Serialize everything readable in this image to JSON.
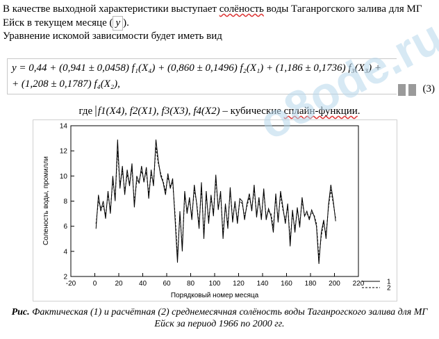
{
  "text": {
    "para1_a": "В качестве выходной характеристики выступает ",
    "para1_b": "солёность",
    "para1_c": " воды Таганрогского залива для МГ Ейск в текущем месяце (",
    "para1_y": "y",
    "para1_d": ").",
    "para2": "Уравнение искомой зависимости будет иметь вид",
    "formula_line1": "y = 0,44 + (0,941 ± 0,0458) f₁(X₄) + (0,860 ± 0,1496) f₂(X₁) + (1,186 ± 0,1736) f₃(X₃) +",
    "formula_line2": "+ (1,208 ± 0,1787) f₄(X₂),",
    "eq_number": "(3)",
    "where_a": "где ",
    "where_b": "f1(X4), f2(X1), f3(X3), f4(X2)",
    "where_c": " – кубические ",
    "where_d": "сплайн-функции",
    "where_e": ".",
    "caption_bold": "Рис.",
    "caption_rest": " Фактическая (1) и расчётная (2) среднемесячная солёность воды Таганрогского залива для МГ Ейск за период 1966 по 2000 гг.",
    "watermark": "o8ode.ru"
  },
  "chart_data": {
    "type": "line",
    "xlabel": "Порядковый номер месяца",
    "ylabel": "Соленость воды, промилли",
    "xlim": [
      -20,
      220
    ],
    "ylim": [
      2,
      14
    ],
    "xticks": [
      -20,
      0,
      20,
      40,
      60,
      80,
      100,
      120,
      140,
      160,
      180,
      200,
      220
    ],
    "yticks": [
      2,
      4,
      6,
      8,
      10,
      12,
      14
    ],
    "legend_position": "bottom-right",
    "series": [
      {
        "name": "1",
        "style": "solid",
        "x": [
          1,
          3,
          5,
          7,
          9,
          11,
          13,
          15,
          17,
          19,
          21,
          23,
          25,
          27,
          29,
          31,
          33,
          35,
          37,
          39,
          41,
          43,
          45,
          47,
          49,
          51,
          53,
          55,
          57,
          59,
          61,
          63,
          65,
          67,
          69,
          71,
          73,
          75,
          77,
          79,
          81,
          83,
          85,
          87,
          89,
          91,
          93,
          95,
          97,
          99,
          101,
          103,
          105,
          107,
          109,
          111,
          113,
          115,
          117,
          119,
          121,
          123,
          125,
          127,
          129,
          131,
          133,
          135,
          137,
          139,
          141,
          143,
          145,
          147,
          149,
          151,
          153,
          155,
          157,
          159,
          161,
          163,
          165,
          167,
          169,
          171,
          173,
          175,
          177,
          179,
          181,
          183,
          185,
          187,
          189,
          191,
          193,
          195,
          197,
          199,
          201
        ],
        "y": [
          5.8,
          8.5,
          7.2,
          8.0,
          6.6,
          8.8,
          7.0,
          10.0,
          8.0,
          12.9,
          9.0,
          10.8,
          8.5,
          10.5,
          9.2,
          11.0,
          7.5,
          10.0,
          9.4,
          10.8,
          9.5,
          10.7,
          8.2,
          10.5,
          9.2,
          12.9,
          11.2,
          10.0,
          9.5,
          8.5,
          10.2,
          9.0,
          9.8,
          6.5,
          3.1,
          7.2,
          4.0,
          8.8,
          7.0,
          8.3,
          6.5,
          9.3,
          7.8,
          5.8,
          9.5,
          5.0,
          8.8,
          6.2,
          8.5,
          6.8,
          10.1,
          7.3,
          8.8,
          5.0,
          7.8,
          5.8,
          9.1,
          6.3,
          8.0,
          6.2,
          8.2,
          8.0,
          6.5,
          7.8,
          8.6,
          7.2,
          9.3,
          6.7,
          8.3,
          6.5,
          9.0,
          6.5,
          7.4,
          6.8,
          5.5,
          8.6,
          6.3,
          8.8,
          7.5,
          6.2,
          7.8,
          4.4,
          7.3,
          5.5,
          7.5,
          5.9,
          8.3,
          6.8,
          7.2,
          6.5,
          7.3,
          6.8,
          6.0,
          3.0,
          5.5,
          6.5,
          5.0,
          7.7,
          9.3,
          8.0,
          6.4
        ]
      },
      {
        "name": "2",
        "style": "dashed",
        "x": [
          1,
          3,
          5,
          7,
          9,
          11,
          13,
          15,
          17,
          19,
          21,
          23,
          25,
          27,
          29,
          31,
          33,
          35,
          37,
          39,
          41,
          43,
          45,
          47,
          49,
          51,
          53,
          55,
          57,
          59,
          61,
          63,
          65,
          67,
          69,
          71,
          73,
          75,
          77,
          79,
          81,
          83,
          85,
          87,
          89,
          91,
          93,
          95,
          97,
          99,
          101,
          103,
          105,
          107,
          109,
          111,
          113,
          115,
          117,
          119,
          121,
          123,
          125,
          127,
          129,
          131,
          133,
          135,
          137,
          139,
          141,
          143,
          145,
          147,
          149,
          151,
          153,
          155,
          157,
          159,
          161,
          163,
          165,
          167,
          169,
          171,
          173,
          175,
          177,
          179,
          181,
          183,
          185,
          187,
          189,
          191,
          193,
          195,
          197,
          199,
          201
        ],
        "y": [
          6.2,
          8.0,
          7.5,
          7.6,
          6.9,
          8.5,
          7.3,
          9.6,
          8.3,
          12.0,
          9.3,
          10.4,
          8.8,
          10.1,
          9.4,
          10.6,
          7.9,
          9.6,
          9.6,
          10.4,
          9.7,
          10.3,
          8.6,
          10.1,
          9.5,
          12.3,
          11.0,
          10.2,
          9.6,
          8.8,
          9.9,
          9.2,
          9.5,
          6.9,
          3.6,
          6.9,
          4.4,
          8.4,
          7.3,
          8.0,
          6.8,
          8.9,
          7.9,
          6.1,
          9.1,
          5.4,
          8.5,
          6.5,
          8.2,
          7.1,
          9.7,
          7.5,
          8.5,
          5.4,
          7.6,
          6.1,
          8.8,
          6.6,
          7.8,
          6.5,
          8.0,
          7.8,
          6.8,
          7.6,
          8.3,
          7.4,
          8.9,
          7.0,
          8.0,
          6.8,
          8.7,
          6.8,
          7.2,
          7.0,
          5.9,
          8.3,
          6.6,
          8.5,
          7.3,
          6.5,
          7.6,
          4.9,
          7.0,
          5.8,
          7.3,
          6.2,
          8.0,
          6.9,
          7.0,
          6.7,
          7.1,
          6.9,
          6.2,
          3.5,
          5.2,
          6.3,
          5.3,
          7.5,
          8.9,
          7.8,
          6.6
        ]
      }
    ]
  }
}
